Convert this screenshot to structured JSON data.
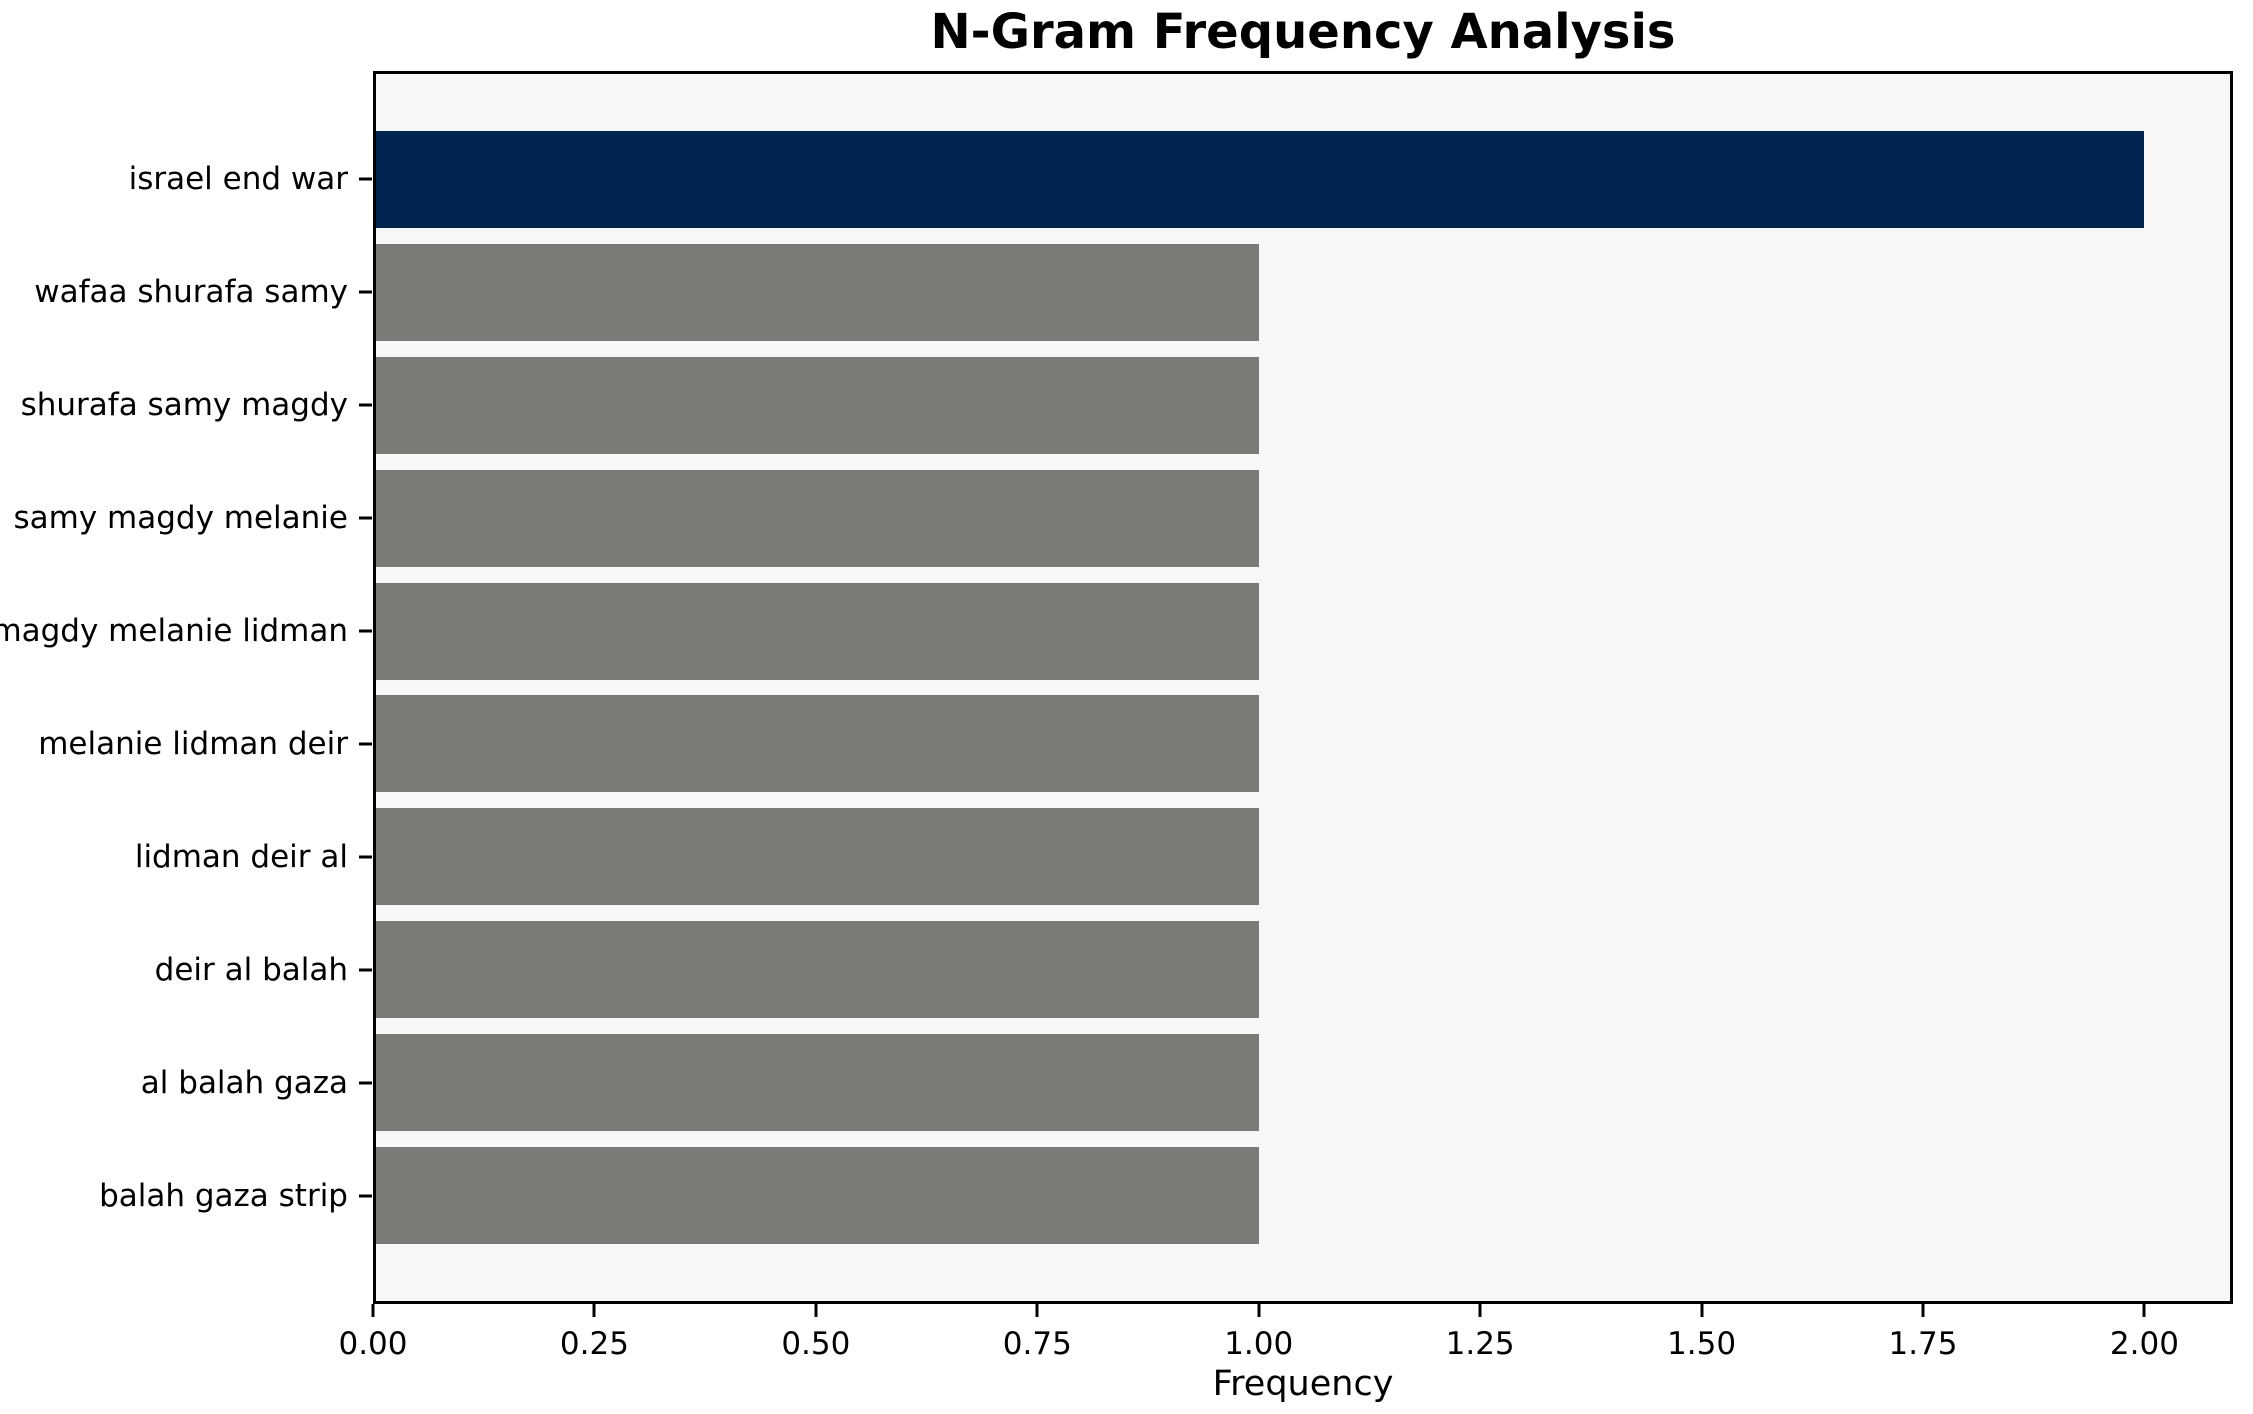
{
  "chart_data": {
    "type": "bar",
    "orientation": "horizontal",
    "title": "N-Gram Frequency Analysis",
    "xlabel": "Frequency",
    "ylabel": "",
    "categories": [
      "israel end war",
      "wafaa shurafa samy",
      "shurafa samy magdy",
      "samy magdy melanie",
      "magdy melanie lidman",
      "melanie lidman deir",
      "lidman deir al",
      "deir al balah",
      "al balah gaza",
      "balah gaza strip"
    ],
    "values": [
      2,
      1,
      1,
      1,
      1,
      1,
      1,
      1,
      1,
      1
    ],
    "xlim": [
      0,
      2.1
    ],
    "xtick_values": [
      0,
      0.25,
      0.5,
      0.75,
      1.0,
      1.25,
      1.5,
      1.75,
      2.0
    ],
    "xtick_labels": [
      "0.00",
      "0.25",
      "0.50",
      "0.75",
      "1.00",
      "1.25",
      "1.50",
      "1.75",
      "2.00"
    ],
    "grid": false,
    "legend": null,
    "highlight_color": "#012551",
    "bar_color": "#7b7a77",
    "plot_background": "#f7f7f7",
    "figure_background": "#ffffff",
    "spine_color": "#000000"
  }
}
